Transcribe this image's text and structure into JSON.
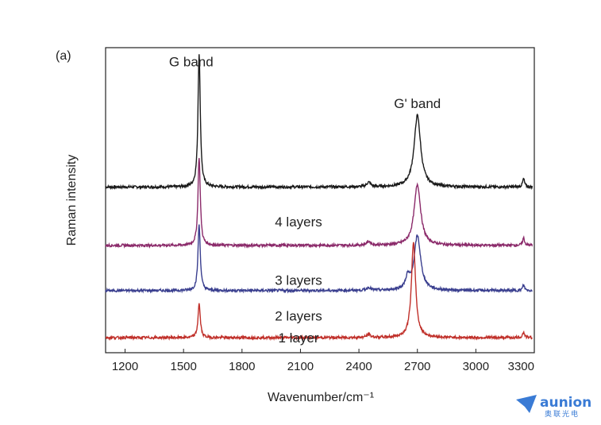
{
  "chart_data": {
    "type": "line",
    "panel_label": "(a)",
    "xlabel": "Wavenumber/cm⁻¹",
    "ylabel": "Raman intensity",
    "xlim": [
      1100,
      3300
    ],
    "xticks": [
      1200,
      1500,
      1800,
      2100,
      2400,
      2700,
      3000,
      3300
    ],
    "grid": false,
    "annotations": [
      {
        "text": "G band",
        "x": 1580
      },
      {
        "text": "G' band",
        "x": 2700
      }
    ],
    "series": [
      {
        "name": "4 layers",
        "color": "#1a1a1a",
        "baseline": 4.05,
        "peaks": [
          {
            "x": 1580,
            "height": 3.55,
            "width": 7
          },
          {
            "x": 2700,
            "height": 1.9,
            "width": 20
          },
          {
            "x": 2450,
            "height": 0.12,
            "width": 12
          },
          {
            "x": 3245,
            "height": 0.22,
            "width": 6
          }
        ]
      },
      {
        "name": "3 layers",
        "color": "#8b2a6a",
        "baseline": 2.5,
        "peaks": [
          {
            "x": 1580,
            "height": 2.35,
            "width": 7
          },
          {
            "x": 2700,
            "height": 1.62,
            "width": 20
          },
          {
            "x": 2450,
            "height": 0.1,
            "width": 12
          },
          {
            "x": 3245,
            "height": 0.2,
            "width": 6
          }
        ]
      },
      {
        "name": "2 layers",
        "color": "#3a3f8f",
        "baseline": 1.3,
        "peaks": [
          {
            "x": 1580,
            "height": 1.75,
            "width": 7
          },
          {
            "x": 2700,
            "height": 1.45,
            "width": 20
          },
          {
            "x": 2650,
            "height": 0.3,
            "width": 12
          },
          {
            "x": 2450,
            "height": 0.08,
            "width": 12
          },
          {
            "x": 3245,
            "height": 0.15,
            "width": 6
          }
        ]
      },
      {
        "name": "1 layer",
        "color": "#c0302a",
        "baseline": 0.05,
        "peaks": [
          {
            "x": 1580,
            "height": 0.9,
            "width": 7
          },
          {
            "x": 2680,
            "height": 2.5,
            "width": 13
          },
          {
            "x": 2450,
            "height": 0.08,
            "width": 12
          },
          {
            "x": 3245,
            "height": 0.15,
            "width": 6
          }
        ]
      }
    ]
  },
  "watermark": {
    "name": "aunion",
    "sub": "奥联光电"
  }
}
